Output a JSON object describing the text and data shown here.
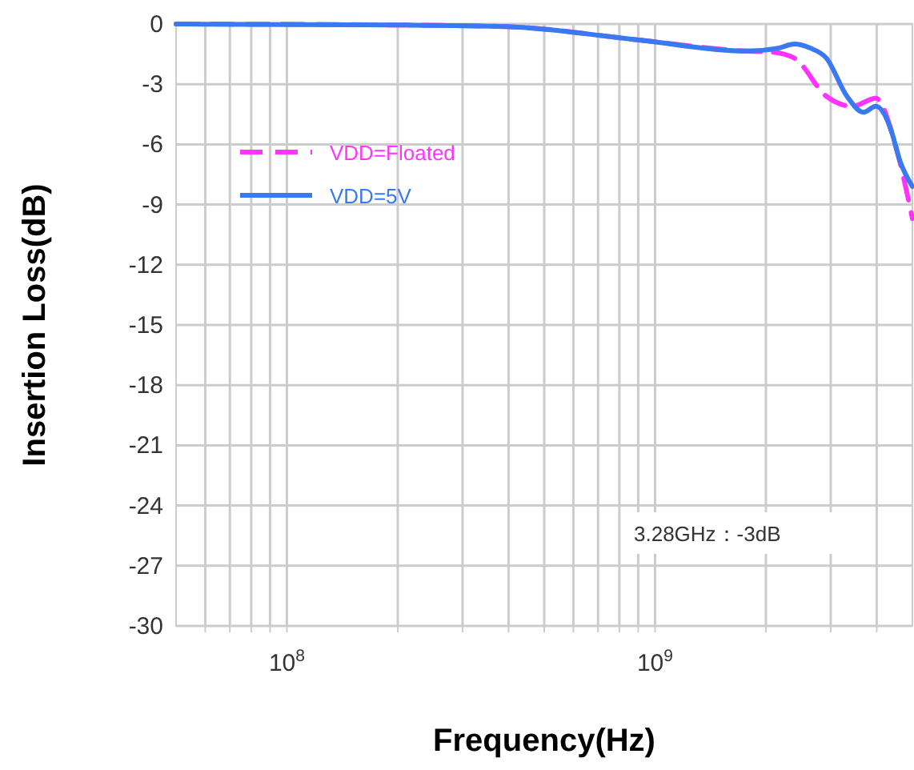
{
  "chart_data": {
    "type": "line",
    "xlabel": "Frequency(Hz)",
    "ylabel": "Insertion Loss(dB)",
    "log": "x",
    "xlim": [
      50000000,
      5000000000
    ],
    "ylim": [
      -30,
      0
    ],
    "xticks": [
      {
        "value": 60000000,
        "label": null
      },
      {
        "value": 70000000,
        "label": null
      },
      {
        "value": 80000000,
        "label": null
      },
      {
        "value": 90000000,
        "label": null
      },
      {
        "value": 100000000,
        "label": "10$^{8}$"
      },
      {
        "value": 200000000,
        "label": null
      },
      {
        "value": 300000000,
        "label": null
      },
      {
        "value": 400000000,
        "label": null
      },
      {
        "value": 500000000,
        "label": null
      },
      {
        "value": 600000000,
        "label": null
      },
      {
        "value": 700000000,
        "label": null
      },
      {
        "value": 800000000,
        "label": null
      },
      {
        "value": 900000000,
        "label": null
      },
      {
        "value": 1000000000,
        "label": "10$^{9}$"
      },
      {
        "value": 2000000000,
        "label": null
      },
      {
        "value": 3000000000,
        "label": null
      },
      {
        "value": 4000000000,
        "label": null
      }
    ],
    "yticks": [
      0,
      -3,
      -6,
      -9,
      -12,
      -15,
      -18,
      -21,
      -24,
      -27,
      -30
    ],
    "grid": true,
    "legend": "top left",
    "series": [
      {
        "name": "VDD=Floated",
        "color": "#ff33ff",
        "line_style": "dashed",
        "x": [
          50000000,
          200000000,
          395000000,
          906000000,
          1770000000,
          2080000000,
          2390000000,
          2920000000,
          3430000000,
          3980000000,
          4490000000,
          5000000000
        ],
        "values": [
          0,
          -0.05,
          -0.13,
          -0.8,
          -1.35,
          -1.4,
          -1.7,
          -3.6,
          -4.1,
          -3.7,
          -6,
          -9.7
        ]
      },
      {
        "name": "VDD=5V",
        "color": "#3a7af0",
        "line_style": "solid",
        "x": [
          50000000,
          200000000,
          395000000,
          906000000,
          1770000000,
          2160000000,
          2390000000,
          2640000000,
          2920000000,
          3320000000,
          3680000000,
          3980000000,
          4360000000,
          4620000000,
          5000000000
        ],
        "values": [
          0,
          -0.05,
          -0.13,
          -0.8,
          -1.35,
          -1.2,
          -1.0,
          -1.2,
          -1.7,
          -3.6,
          -4.4,
          -4.1,
          -5.2,
          -6.8,
          -8.1
        ]
      }
    ],
    "annotations": [
      "3.28GHz：-3dB"
    ]
  }
}
